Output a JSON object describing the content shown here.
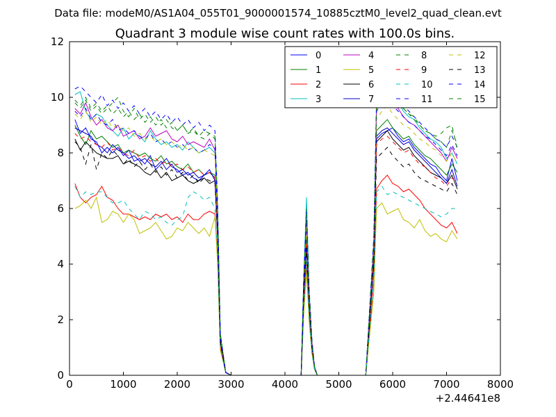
{
  "chart_data": {
    "type": "line",
    "suptitle": "Data file: modeM0/AS1A04_055T01_9000001574_10885cztM0_level2_quad_clean.evt",
    "title": "Quadrant 3 module wise count rates with 100.0s bins.",
    "xlabel": "",
    "ylabel": "",
    "xlim": [
      0,
      8000
    ],
    "ylim": [
      0,
      12
    ],
    "x_offset_label": "+2.44641e8",
    "x_ticks": [
      0,
      1000,
      2000,
      3000,
      4000,
      5000,
      6000,
      7000,
      8000
    ],
    "x_tick_labels": [
      "0",
      "1000",
      "2000",
      "3000",
      "4000",
      "5000",
      "6000",
      "7000",
      "8000"
    ],
    "y_ticks": [
      0,
      2,
      4,
      6,
      8,
      10,
      12
    ],
    "y_tick_labels": [
      "0",
      "2",
      "4",
      "6",
      "8",
      "10",
      "12"
    ],
    "grid": false,
    "legend_position": "top-right",
    "x": [
      100,
      200,
      300,
      400,
      500,
      600,
      700,
      800,
      900,
      1000,
      1100,
      1200,
      1300,
      1400,
      1500,
      1600,
      1700,
      1800,
      1900,
      2000,
      2100,
      2200,
      2300,
      2400,
      2500,
      2600,
      2700,
      2750,
      2800,
      2900,
      3000,
      3500,
      4000,
      4300,
      4350,
      4400,
      4450,
      4500,
      4550,
      4600,
      4700,
      5000,
      5500,
      5650,
      5700,
      5800,
      5900,
      6000,
      6100,
      6200,
      6300,
      6400,
      6500,
      6600,
      6700,
      6800,
      6900,
      7000,
      7100,
      7200
    ],
    "series": [
      {
        "name": "0",
        "color": "#0000ff",
        "dash": "solid",
        "values": [
          9.2,
          8.7,
          8.9,
          8.5,
          8.4,
          8.0,
          8.2,
          8.0,
          8.2,
          7.9,
          8.1,
          7.7,
          7.8,
          7.6,
          7.9,
          7.4,
          7.6,
          7.8,
          7.5,
          7.4,
          7.2,
          7.3,
          7.1,
          7.0,
          7.2,
          7.4,
          7.0,
          5.0,
          1.2,
          0.1,
          0,
          0,
          0,
          0,
          2.8,
          4.8,
          2.5,
          1.0,
          0.3,
          0,
          0,
          0,
          0,
          4.0,
          8.5,
          8.7,
          8.8,
          8.9,
          8.6,
          8.4,
          8.5,
          8.2,
          8.0,
          7.8,
          7.6,
          7.5,
          7.2,
          7.0,
          7.8,
          7.0
        ]
      },
      {
        "name": "1",
        "color": "#008000",
        "dash": "solid",
        "values": [
          9.0,
          8.6,
          8.3,
          8.8,
          8.5,
          8.6,
          8.4,
          8.2,
          8.3,
          8.0,
          8.1,
          8.0,
          7.9,
          8.0,
          7.8,
          7.7,
          7.9,
          7.6,
          7.7,
          7.5,
          7.4,
          7.6,
          7.3,
          7.4,
          7.2,
          7.3,
          7.2,
          5.1,
          1.2,
          0.1,
          0,
          0,
          0,
          0,
          3.0,
          5.0,
          2.6,
          1.0,
          0.3,
          0,
          0,
          0,
          0,
          4.2,
          8.8,
          9.0,
          9.2,
          8.9,
          8.7,
          8.5,
          8.6,
          8.3,
          8.1,
          7.9,
          7.8,
          7.6,
          7.4,
          7.2,
          7.6,
          7.3
        ]
      },
      {
        "name": "2",
        "color": "#ff0000",
        "dash": "solid",
        "values": [
          6.9,
          6.4,
          6.2,
          6.4,
          6.5,
          6.8,
          6.4,
          6.3,
          6.0,
          5.8,
          5.8,
          5.7,
          5.6,
          5.7,
          5.6,
          5.8,
          5.7,
          5.8,
          5.6,
          5.7,
          5.5,
          5.8,
          5.6,
          5.6,
          5.8,
          5.9,
          5.8,
          4.2,
          1.0,
          0.1,
          0,
          0,
          0,
          0,
          2.4,
          4.0,
          2.0,
          0.8,
          0.2,
          0,
          0,
          0,
          0,
          3.4,
          6.7,
          7.0,
          7.2,
          6.9,
          6.8,
          6.6,
          6.7,
          6.5,
          6.3,
          6.0,
          5.8,
          5.6,
          5.4,
          5.3,
          5.5,
          5.1
        ]
      },
      {
        "name": "3",
        "color": "#00bfbf",
        "dash": "solid",
        "values": [
          10.1,
          10.2,
          9.5,
          9.2,
          9.4,
          9.3,
          9.0,
          8.8,
          8.6,
          8.9,
          8.5,
          8.7,
          8.6,
          8.4,
          8.8,
          8.5,
          8.3,
          8.4,
          8.2,
          8.3,
          8.1,
          8.4,
          8.2,
          8.0,
          8.1,
          8.2,
          8.0,
          5.8,
          1.4,
          0.1,
          0,
          0,
          0,
          0,
          3.5,
          6.4,
          3.0,
          1.2,
          0.3,
          0,
          0,
          0,
          0,
          4.8,
          9.8,
          10.2,
          10.4,
          10.0,
          9.8,
          9.5,
          9.3,
          9.2,
          8.9,
          8.7,
          8.5,
          8.4,
          8.2,
          7.8,
          8.0,
          7.6
        ]
      },
      {
        "name": "4",
        "color": "#bf00bf",
        "dash": "solid",
        "values": [
          9.6,
          9.4,
          9.8,
          9.3,
          9.0,
          9.2,
          8.9,
          8.8,
          9.0,
          8.6,
          8.7,
          8.8,
          8.5,
          8.6,
          8.9,
          8.6,
          8.7,
          8.8,
          8.5,
          8.4,
          8.6,
          8.3,
          8.4,
          8.3,
          8.2,
          8.5,
          8.1,
          5.9,
          1.4,
          0.1,
          0,
          0,
          0,
          0,
          3.4,
          5.5,
          2.9,
          1.2,
          0.3,
          0,
          0,
          0,
          0,
          4.8,
          9.6,
          10.0,
          10.1,
          9.8,
          9.6,
          9.3,
          9.1,
          9.0,
          8.8,
          8.6,
          8.4,
          8.2,
          8.0,
          7.7,
          8.2,
          7.8
        ]
      },
      {
        "name": "5",
        "color": "#bfbf00",
        "dash": "solid",
        "values": [
          6.0,
          6.1,
          6.3,
          6.0,
          6.4,
          5.5,
          5.6,
          5.9,
          5.8,
          5.5,
          5.8,
          5.6,
          5.1,
          5.2,
          5.3,
          5.5,
          5.2,
          4.9,
          5.0,
          5.3,
          5.2,
          5.5,
          5.3,
          5.1,
          5.3,
          5.0,
          5.7,
          4.0,
          0.9,
          0.1,
          0,
          0,
          0,
          0,
          2.2,
          3.7,
          1.9,
          0.8,
          0.2,
          0,
          0,
          0,
          0,
          3.0,
          6.0,
          6.2,
          5.8,
          5.9,
          6.0,
          5.6,
          5.5,
          5.3,
          5.6,
          5.2,
          5.0,
          5.1,
          4.9,
          4.8,
          5.2,
          4.9
        ]
      },
      {
        "name": "6",
        "color": "#000000",
        "dash": "solid",
        "values": [
          8.5,
          8.1,
          8.4,
          8.2,
          8.0,
          7.9,
          7.8,
          7.8,
          7.9,
          7.6,
          7.7,
          7.6,
          7.5,
          7.3,
          7.2,
          7.4,
          7.1,
          7.3,
          7.0,
          7.1,
          7.2,
          7.0,
          6.9,
          7.0,
          7.1,
          6.9,
          7.0,
          5.0,
          1.2,
          0.1,
          0,
          0,
          0,
          0,
          2.9,
          4.6,
          2.5,
          1.0,
          0.3,
          0,
          0,
          0,
          0,
          4.2,
          8.4,
          8.6,
          8.8,
          8.5,
          8.3,
          8.1,
          8.2,
          7.9,
          7.7,
          7.5,
          7.3,
          7.2,
          7.1,
          6.9,
          7.2,
          6.7
        ]
      },
      {
        "name": "7",
        "color": "#0000bf",
        "dash": "solid",
        "values": [
          8.9,
          8.8,
          8.7,
          8.6,
          8.3,
          8.2,
          8.0,
          8.3,
          8.1,
          8.0,
          7.8,
          7.9,
          7.7,
          7.8,
          7.6,
          7.5,
          7.7,
          7.4,
          7.6,
          7.3,
          7.4,
          7.2,
          7.3,
          7.1,
          7.2,
          7.3,
          7.1,
          5.1,
          1.2,
          0.1,
          0,
          0,
          0,
          0,
          2.9,
          4.7,
          2.5,
          1.0,
          0.3,
          0,
          0,
          0,
          0,
          4.4,
          8.6,
          8.8,
          8.9,
          8.7,
          8.5,
          8.3,
          8.4,
          8.1,
          7.9,
          7.7,
          7.5,
          7.3,
          7.1,
          6.9,
          7.4,
          6.8
        ]
      },
      {
        "name": "8",
        "color": "#008000",
        "dash": "dashed",
        "values": [
          9.8,
          9.6,
          9.9,
          9.5,
          9.7,
          9.4,
          9.6,
          9.8,
          10.0,
          9.5,
          9.3,
          9.6,
          9.2,
          9.4,
          9.1,
          9.3,
          9.0,
          9.2,
          8.9,
          8.8,
          9.0,
          8.7,
          8.8,
          8.6,
          8.5,
          8.7,
          8.5,
          6.0,
          1.5,
          0.1,
          0,
          0,
          0,
          0,
          3.5,
          6.0,
          3.1,
          1.2,
          0.3,
          0,
          0,
          0,
          0,
          5.0,
          10.0,
          10.2,
          10.4,
          10.1,
          9.9,
          9.6,
          9.4,
          9.3,
          9.0,
          8.8,
          8.7,
          8.5,
          8.4,
          8.2,
          8.8,
          8.3
        ]
      },
      {
        "name": "9",
        "color": "#ff0000",
        "dash": "dashed",
        "values": [
          8.7,
          8.5,
          8.6,
          8.4,
          8.3,
          8.2,
          8.4,
          8.1,
          8.2,
          8.0,
          7.9,
          8.1,
          7.8,
          7.9,
          7.7,
          7.8,
          7.6,
          7.7,
          7.5,
          7.6,
          7.4,
          7.5,
          7.3,
          7.4,
          7.2,
          7.3,
          7.1,
          5.1,
          1.2,
          0.1,
          0,
          0,
          0,
          0,
          2.9,
          4.8,
          2.5,
          1.0,
          0.3,
          0,
          0,
          0,
          0,
          4.2,
          8.3,
          8.5,
          8.6,
          8.4,
          8.2,
          8.0,
          8.1,
          7.8,
          7.6,
          7.5,
          7.3,
          7.1,
          7.0,
          6.8,
          7.1,
          6.9
        ]
      },
      {
        "name": "10",
        "color": "#00bfbf",
        "dash": "dashed",
        "values": [
          6.8,
          6.4,
          6.6,
          6.5,
          6.6,
          6.6,
          6.4,
          6.2,
          6.2,
          6.3,
          6.0,
          5.8,
          5.6,
          5.9,
          5.8,
          5.6,
          5.7,
          5.5,
          5.4,
          5.6,
          5.7,
          6.4,
          6.6,
          6.5,
          6.3,
          6.4,
          6.0,
          4.3,
          1.0,
          0.1,
          0,
          0,
          0,
          0,
          2.5,
          4.1,
          2.1,
          0.8,
          0.2,
          0,
          0,
          0,
          0,
          3.4,
          6.6,
          6.8,
          6.5,
          6.6,
          6.5,
          6.4,
          6.3,
          6.2,
          6.1,
          6.0,
          5.9,
          5.8,
          5.7,
          5.8,
          6.0,
          6.0
        ]
      },
      {
        "name": "11",
        "color": "#0000ff",
        "dash": "dashed",
        "values": [
          9.5,
          9.3,
          9.6,
          9.2,
          9.4,
          9.1,
          9.0,
          9.2,
          8.8,
          8.9,
          8.7,
          8.8,
          8.6,
          8.5,
          8.7,
          8.4,
          8.5,
          8.3,
          8.4,
          8.2,
          8.3,
          8.1,
          8.2,
          8.0,
          8.1,
          8.3,
          8.2,
          5.8,
          1.4,
          0.1,
          0,
          0,
          0,
          0,
          3.4,
          5.6,
          2.9,
          1.2,
          0.3,
          0,
          0,
          0,
          0,
          4.8,
          9.5,
          9.8,
          10.0,
          9.7,
          9.5,
          9.3,
          9.1,
          9.0,
          8.8,
          8.6,
          8.5,
          8.3,
          8.1,
          7.9,
          8.3,
          7.9
        ]
      },
      {
        "name": "12",
        "color": "#bfbf00",
        "dash": "dashed",
        "values": [
          9.4,
          9.2,
          9.5,
          9.1,
          9.3,
          9.0,
          9.2,
          8.9,
          9.0,
          8.8,
          8.9,
          8.6,
          8.7,
          8.5,
          8.6,
          8.4,
          8.5,
          8.3,
          8.4,
          8.2,
          8.3,
          8.1,
          8.2,
          8.0,
          8.1,
          8.0,
          7.9,
          5.7,
          1.4,
          0.1,
          0,
          0,
          0,
          0,
          3.3,
          5.4,
          2.8,
          1.1,
          0.3,
          0,
          0,
          0,
          0,
          4.6,
          9.2,
          9.5,
          9.7,
          9.4,
          9.2,
          9.0,
          8.9,
          8.7,
          8.5,
          8.4,
          8.2,
          8.1,
          7.9,
          7.7,
          8.0,
          7.6
        ]
      },
      {
        "name": "13",
        "color": "#000000",
        "dash": "dashed",
        "values": [
          8.4,
          8.2,
          7.6,
          8.3,
          7.4,
          8.0,
          7.8,
          8.1,
          7.9,
          7.6,
          7.8,
          7.5,
          7.7,
          7.4,
          7.6,
          7.3,
          7.5,
          7.2,
          7.4,
          7.1,
          7.3,
          7.0,
          7.2,
          6.9,
          7.1,
          7.0,
          6.9,
          5.0,
          1.2,
          0.1,
          0,
          0,
          0,
          0,
          2.9,
          4.6,
          2.4,
          1.0,
          0.3,
          0,
          0,
          0,
          0,
          4.0,
          7.8,
          8.0,
          8.2,
          7.9,
          7.7,
          7.5,
          7.6,
          7.3,
          7.1,
          7.0,
          6.9,
          6.8,
          6.7,
          6.6,
          6.9,
          6.5
        ]
      },
      {
        "name": "14",
        "color": "#0000ff",
        "dash": "dashed",
        "values": [
          10.3,
          10.4,
          10.2,
          10.0,
          9.8,
          10.1,
          9.7,
          9.9,
          9.6,
          9.8,
          9.5,
          9.7,
          9.4,
          9.6,
          9.3,
          9.5,
          9.2,
          9.4,
          9.1,
          9.3,
          9.0,
          9.2,
          8.9,
          9.1,
          8.8,
          9.0,
          8.8,
          6.2,
          1.5,
          0.1,
          0,
          0,
          0,
          0,
          3.6,
          5.9,
          3.1,
          1.3,
          0.3,
          0,
          0,
          0,
          0,
          5.0,
          10.0,
          10.3,
          10.5,
          10.1,
          9.9,
          9.7,
          9.5,
          9.3,
          9.1,
          8.9,
          8.7,
          8.5,
          8.4,
          8.2,
          8.6,
          8.2
        ]
      },
      {
        "name": "15",
        "color": "#008000",
        "dash": "dashed",
        "values": [
          9.9,
          9.7,
          10.0,
          9.6,
          9.8,
          9.5,
          9.7,
          9.4,
          9.6,
          9.3,
          9.5,
          9.2,
          9.4,
          9.1,
          9.3,
          9.0,
          9.2,
          8.9,
          9.1,
          8.8,
          9.0,
          8.7,
          8.9,
          8.6,
          8.8,
          8.7,
          8.6,
          6.1,
          1.5,
          0.1,
          0,
          0,
          0,
          0,
          3.5,
          5.8,
          3.0,
          1.2,
          0.3,
          0,
          0,
          0,
          0,
          4.9,
          9.9,
          10.1,
          10.3,
          10.0,
          9.8,
          9.6,
          9.4,
          9.2,
          9.0,
          8.8,
          8.7,
          8.6,
          8.7,
          8.9,
          9.0,
          8.1
        ]
      }
    ]
  }
}
